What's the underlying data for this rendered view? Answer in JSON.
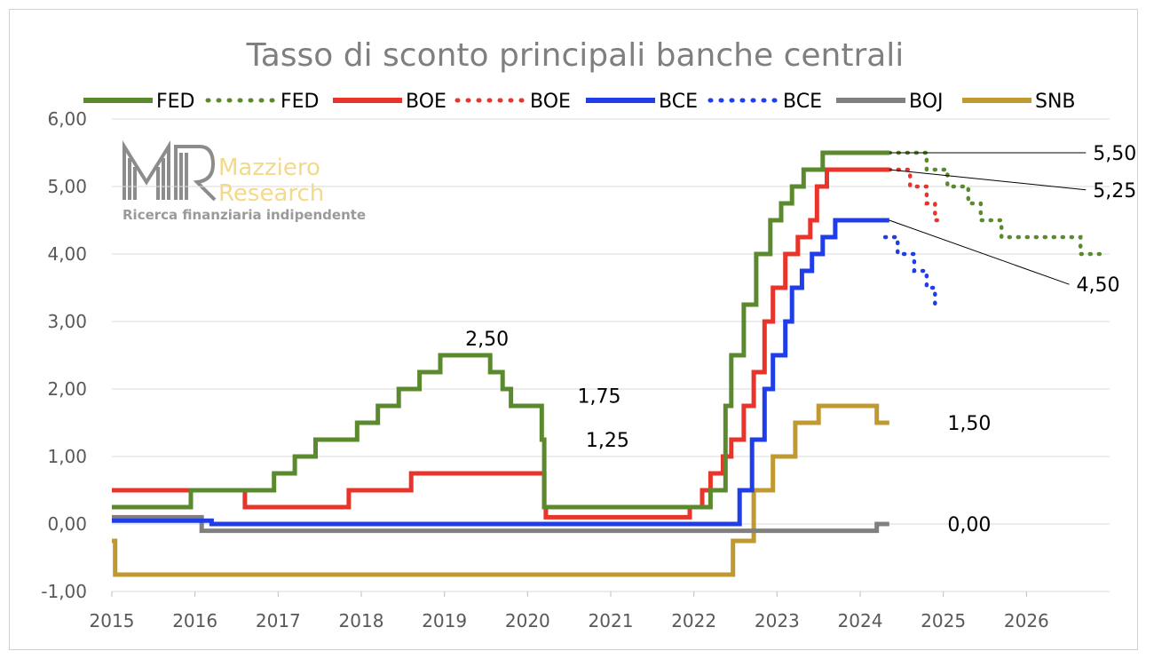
{
  "chart_data": {
    "type": "line",
    "title": "Tasso di sconto principali banche centrali",
    "watermark": {
      "name": "Mazziero Research",
      "line1": "Mazziero",
      "line2": "Research",
      "tagline": "Ricerca finanziaria indipendente"
    },
    "ylim": [
      -1,
      6
    ],
    "yticks": [
      "-1,00",
      "0,00",
      "1,00",
      "2,00",
      "3,00",
      "4,00",
      "5,00",
      "6,00"
    ],
    "xlim": [
      2015,
      2027
    ],
    "xticks": [
      "2015",
      "2016",
      "2017",
      "2018",
      "2019",
      "2020",
      "2021",
      "2022",
      "2023",
      "2024",
      "2025",
      "2026"
    ],
    "grid": "horizontal",
    "legend_position": "top",
    "legend": [
      {
        "label": "FED",
        "color": "#5b8a2e",
        "style": "solid"
      },
      {
        "label": "FED",
        "color": "#5b8a2e",
        "style": "dotted"
      },
      {
        "label": "BOE",
        "color": "#e8342a",
        "style": "solid"
      },
      {
        "label": "BOE",
        "color": "#e8342a",
        "style": "dotted"
      },
      {
        "label": "BCE",
        "color": "#1f3ee8",
        "style": "solid"
      },
      {
        "label": "BCE",
        "color": "#1f3ee8",
        "style": "dotted"
      },
      {
        "label": "BOJ",
        "color": "#808080",
        "style": "solid"
      },
      {
        "label": "SNB",
        "color": "#c09a30",
        "style": "solid"
      }
    ],
    "series": [
      {
        "name": "FED",
        "color": "#5b8a2e",
        "style": "solid",
        "points": [
          [
            2015.0,
            0.25
          ],
          [
            2015.95,
            0.25
          ],
          [
            2015.95,
            0.5
          ],
          [
            2016.95,
            0.5
          ],
          [
            2016.95,
            0.75
          ],
          [
            2017.2,
            0.75
          ],
          [
            2017.2,
            1.0
          ],
          [
            2017.45,
            1.0
          ],
          [
            2017.45,
            1.25
          ],
          [
            2017.95,
            1.25
          ],
          [
            2017.95,
            1.5
          ],
          [
            2018.2,
            1.5
          ],
          [
            2018.2,
            1.75
          ],
          [
            2018.45,
            1.75
          ],
          [
            2018.45,
            2.0
          ],
          [
            2018.7,
            2.0
          ],
          [
            2018.7,
            2.25
          ],
          [
            2018.95,
            2.25
          ],
          [
            2018.95,
            2.5
          ],
          [
            2019.55,
            2.5
          ],
          [
            2019.55,
            2.25
          ],
          [
            2019.7,
            2.25
          ],
          [
            2019.7,
            2.0
          ],
          [
            2019.8,
            2.0
          ],
          [
            2019.8,
            1.75
          ],
          [
            2020.17,
            1.75
          ],
          [
            2020.17,
            1.25
          ],
          [
            2020.2,
            1.25
          ],
          [
            2020.2,
            0.25
          ],
          [
            2022.2,
            0.25
          ],
          [
            2022.2,
            0.5
          ],
          [
            2022.38,
            0.5
          ],
          [
            2022.38,
            1.75
          ],
          [
            2022.45,
            1.75
          ],
          [
            2022.45,
            2.5
          ],
          [
            2022.6,
            2.5
          ],
          [
            2022.6,
            3.25
          ],
          [
            2022.75,
            3.25
          ],
          [
            2022.75,
            4.0
          ],
          [
            2022.92,
            4.0
          ],
          [
            2022.92,
            4.5
          ],
          [
            2023.05,
            4.5
          ],
          [
            2023.05,
            4.75
          ],
          [
            2023.18,
            4.75
          ],
          [
            2023.18,
            5.0
          ],
          [
            2023.32,
            5.0
          ],
          [
            2023.32,
            5.25
          ],
          [
            2023.55,
            5.25
          ],
          [
            2023.55,
            5.5
          ],
          [
            2024.35,
            5.5
          ]
        ]
      },
      {
        "name": "FED",
        "color": "#5b8a2e",
        "style": "dotted",
        "points": [
          [
            2024.35,
            5.5
          ],
          [
            2024.8,
            5.5
          ],
          [
            2024.8,
            5.25
          ],
          [
            2025.05,
            5.25
          ],
          [
            2025.05,
            5.0
          ],
          [
            2025.3,
            5.0
          ],
          [
            2025.3,
            4.75
          ],
          [
            2025.45,
            4.75
          ],
          [
            2025.45,
            4.5
          ],
          [
            2025.7,
            4.5
          ],
          [
            2025.7,
            4.25
          ],
          [
            2026.65,
            4.25
          ],
          [
            2026.65,
            4.0
          ],
          [
            2026.95,
            4.0
          ]
        ]
      },
      {
        "name": "BOE",
        "color": "#e8342a",
        "style": "solid",
        "points": [
          [
            2015.0,
            0.5
          ],
          [
            2016.6,
            0.5
          ],
          [
            2016.6,
            0.25
          ],
          [
            2017.85,
            0.25
          ],
          [
            2017.85,
            0.5
          ],
          [
            2018.6,
            0.5
          ],
          [
            2018.6,
            0.75
          ],
          [
            2020.2,
            0.75
          ],
          [
            2020.2,
            0.25
          ],
          [
            2020.22,
            0.25
          ],
          [
            2020.22,
            0.1
          ],
          [
            2021.95,
            0.1
          ],
          [
            2021.95,
            0.25
          ],
          [
            2022.1,
            0.25
          ],
          [
            2022.1,
            0.5
          ],
          [
            2022.2,
            0.5
          ],
          [
            2022.2,
            0.75
          ],
          [
            2022.35,
            0.75
          ],
          [
            2022.35,
            1.0
          ],
          [
            2022.45,
            1.0
          ],
          [
            2022.45,
            1.25
          ],
          [
            2022.6,
            1.25
          ],
          [
            2022.6,
            1.75
          ],
          [
            2022.72,
            1.75
          ],
          [
            2022.72,
            2.25
          ],
          [
            2022.85,
            2.25
          ],
          [
            2022.85,
            3.0
          ],
          [
            2022.95,
            3.0
          ],
          [
            2022.95,
            3.5
          ],
          [
            2023.1,
            3.5
          ],
          [
            2023.1,
            4.0
          ],
          [
            2023.25,
            4.0
          ],
          [
            2023.25,
            4.25
          ],
          [
            2023.4,
            4.25
          ],
          [
            2023.4,
            4.5
          ],
          [
            2023.48,
            4.5
          ],
          [
            2023.48,
            5.0
          ],
          [
            2023.6,
            5.0
          ],
          [
            2023.6,
            5.25
          ],
          [
            2024.35,
            5.25
          ]
        ]
      },
      {
        "name": "BOE",
        "color": "#e8342a",
        "style": "dotted",
        "points": [
          [
            2024.35,
            5.25
          ],
          [
            2024.6,
            5.25
          ],
          [
            2024.6,
            5.0
          ],
          [
            2024.8,
            5.0
          ],
          [
            2024.8,
            4.75
          ],
          [
            2024.9,
            4.75
          ],
          [
            2024.9,
            4.5
          ],
          [
            2025.0,
            4.5
          ]
        ]
      },
      {
        "name": "BCE",
        "color": "#1f3ee8",
        "style": "solid",
        "points": [
          [
            2015.0,
            0.05
          ],
          [
            2016.2,
            0.05
          ],
          [
            2016.2,
            0.0
          ],
          [
            2022.55,
            0.0
          ],
          [
            2022.55,
            0.5
          ],
          [
            2022.7,
            0.5
          ],
          [
            2022.7,
            1.25
          ],
          [
            2022.85,
            1.25
          ],
          [
            2022.85,
            2.0
          ],
          [
            2022.95,
            2.0
          ],
          [
            2022.95,
            2.5
          ],
          [
            2023.1,
            2.5
          ],
          [
            2023.1,
            3.0
          ],
          [
            2023.18,
            3.0
          ],
          [
            2023.18,
            3.5
          ],
          [
            2023.3,
            3.5
          ],
          [
            2023.3,
            3.75
          ],
          [
            2023.42,
            3.75
          ],
          [
            2023.42,
            4.0
          ],
          [
            2023.55,
            4.0
          ],
          [
            2023.55,
            4.25
          ],
          [
            2023.7,
            4.25
          ],
          [
            2023.7,
            4.5
          ],
          [
            2024.35,
            4.5
          ]
        ]
      },
      {
        "name": "BCE",
        "color": "#1f3ee8",
        "style": "dotted",
        "points": [
          [
            2024.3,
            4.25
          ],
          [
            2024.45,
            4.25
          ],
          [
            2024.45,
            4.0
          ],
          [
            2024.65,
            4.0
          ],
          [
            2024.65,
            3.75
          ],
          [
            2024.8,
            3.75
          ],
          [
            2024.8,
            3.5
          ],
          [
            2024.9,
            3.5
          ],
          [
            2024.9,
            3.25
          ],
          [
            2024.95,
            3.25
          ]
        ]
      },
      {
        "name": "BOJ",
        "color": "#808080",
        "style": "solid",
        "points": [
          [
            2015.0,
            0.1
          ],
          [
            2016.08,
            0.1
          ],
          [
            2016.08,
            -0.1
          ],
          [
            2024.2,
            -0.1
          ],
          [
            2024.2,
            0.0
          ],
          [
            2024.35,
            0.0
          ]
        ]
      },
      {
        "name": "SNB",
        "color": "#c09a30",
        "style": "solid",
        "points": [
          [
            2015.0,
            -0.25
          ],
          [
            2015.04,
            -0.25
          ],
          [
            2015.04,
            -0.75
          ],
          [
            2022.47,
            -0.75
          ],
          [
            2022.47,
            -0.25
          ],
          [
            2022.72,
            -0.25
          ],
          [
            2022.72,
            0.5
          ],
          [
            2022.95,
            0.5
          ],
          [
            2022.95,
            1.0
          ],
          [
            2023.22,
            1.0
          ],
          [
            2023.22,
            1.5
          ],
          [
            2023.5,
            1.5
          ],
          [
            2023.5,
            1.75
          ],
          [
            2024.2,
            1.75
          ],
          [
            2024.2,
            1.5
          ],
          [
            2024.35,
            1.5
          ]
        ]
      }
    ],
    "annotations": [
      {
        "text": "2,50",
        "x": 2019.25,
        "y": 2.75
      },
      {
        "text": "1,75",
        "x": 2020.6,
        "y": 1.9
      },
      {
        "text": "1,25",
        "x": 2020.7,
        "y": 1.25
      },
      {
        "text": "5,50",
        "x": 2026.8,
        "y": 5.5,
        "leader": [
          2024.35,
          5.5
        ]
      },
      {
        "text": "5,25",
        "x": 2026.8,
        "y": 4.95,
        "leader": [
          2024.35,
          5.25
        ]
      },
      {
        "text": "4,50",
        "x": 2026.6,
        "y": 3.55,
        "leader": [
          2024.35,
          4.5
        ]
      },
      {
        "text": "1,50",
        "x": 2025.05,
        "y": 1.5
      },
      {
        "text": "0,00",
        "x": 2025.05,
        "y": 0.0
      }
    ]
  }
}
